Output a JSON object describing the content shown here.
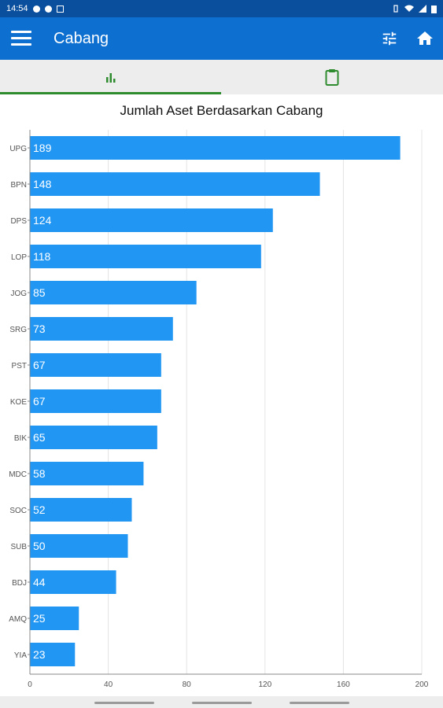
{
  "status_bar": {
    "time": "14:54"
  },
  "app_bar": {
    "title": "Cabang"
  },
  "tabs": [
    {
      "icon": "bar-chart-icon",
      "selected": true
    },
    {
      "icon": "clipboard-icon",
      "selected": false
    }
  ],
  "colors": {
    "app_bar": "#0d6fd0",
    "status_bar": "#0a4f9e",
    "bar": "#2196f3",
    "tab_accent": "#2e8b2e"
  },
  "chart_data": {
    "type": "bar",
    "orientation": "horizontal",
    "title": "Jumlah Aset Berdasarkan Cabang",
    "categories": [
      "UPG",
      "BPN",
      "DPS",
      "LOP",
      "JOG",
      "SRG",
      "PST",
      "KOE",
      "BIK",
      "MDC",
      "SOC",
      "SUB",
      "BDJ",
      "AMQ",
      "YIA"
    ],
    "values": [
      189,
      148,
      124,
      118,
      85,
      73,
      67,
      67,
      65,
      58,
      52,
      50,
      44,
      25,
      23
    ],
    "xlim": [
      0,
      200
    ],
    "xticks": [
      0,
      40,
      80,
      120,
      160,
      200
    ],
    "grid": true,
    "data_labels": true
  }
}
